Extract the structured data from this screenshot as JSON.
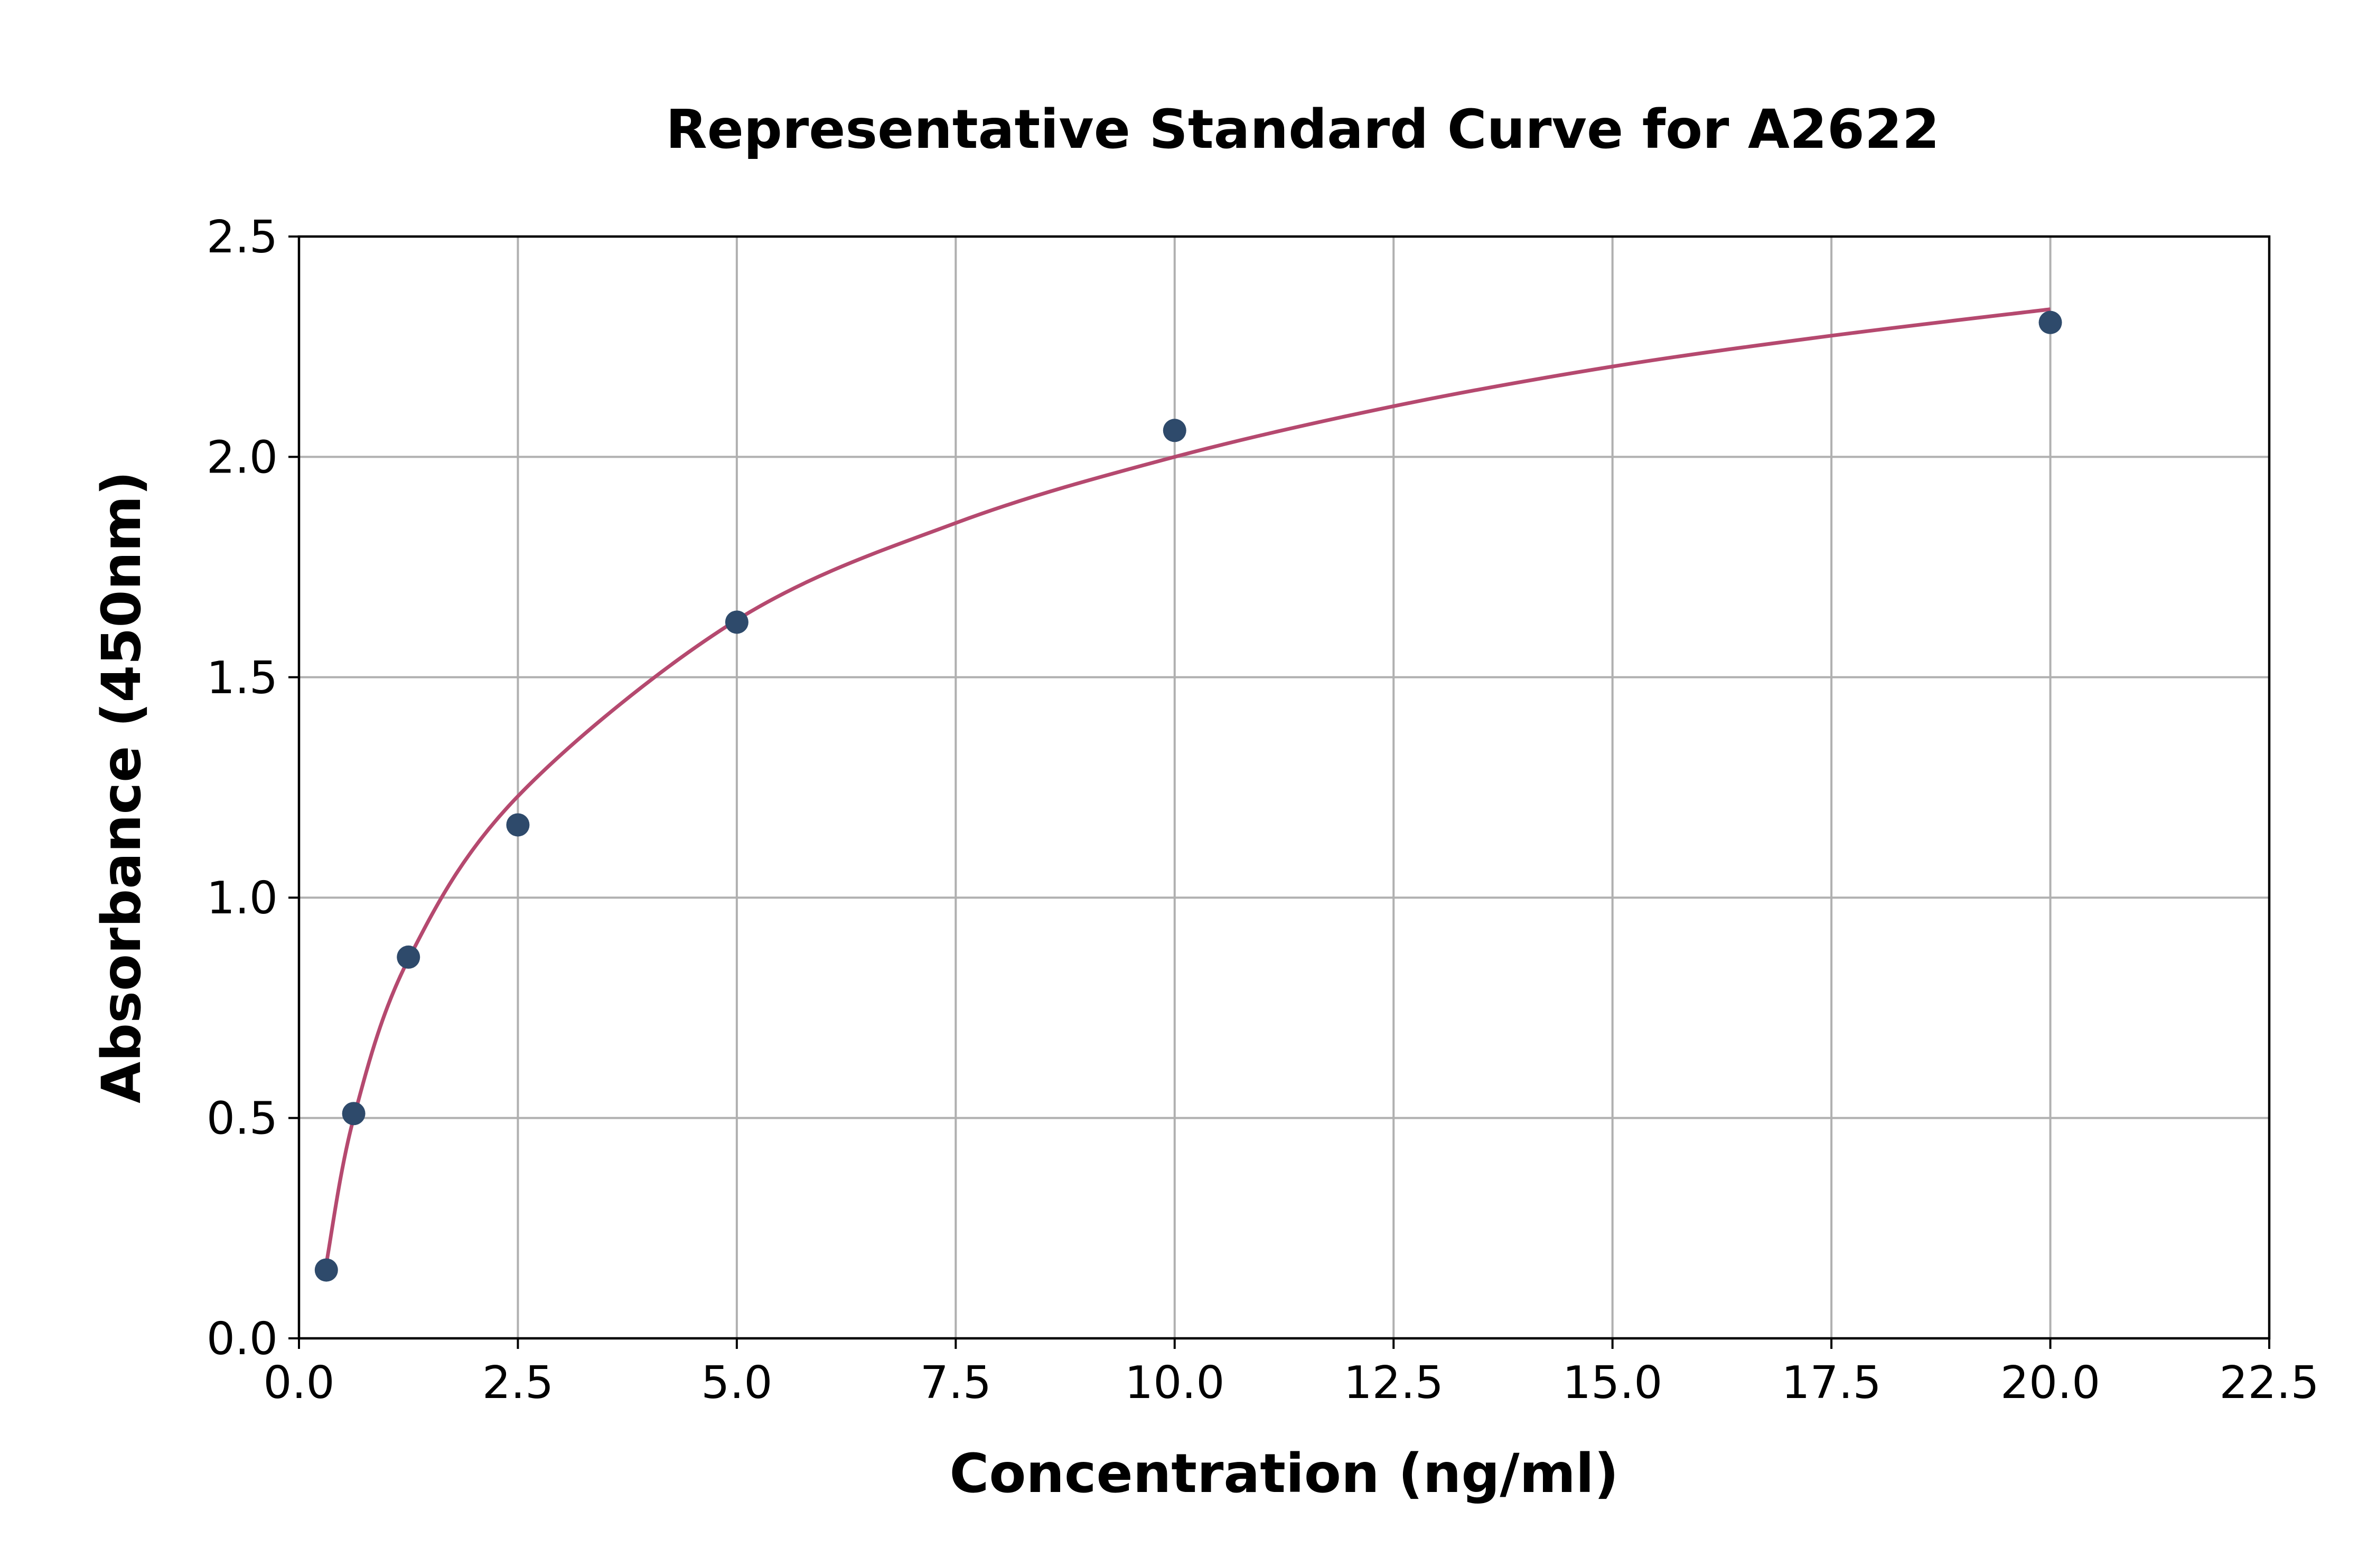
{
  "chart_data": {
    "type": "scatter",
    "title": "Representative Standard Curve for A2622",
    "xlabel": "Concentration (ng/ml)",
    "ylabel": "Absorbance (450nm)",
    "xlim": [
      0,
      22.5
    ],
    "ylim": [
      0,
      2.5
    ],
    "x_ticks": [
      "0.0",
      "2.5",
      "5.0",
      "7.5",
      "10.0",
      "12.5",
      "15.0",
      "17.5",
      "20.0",
      "22.5"
    ],
    "y_ticks": [
      "0.0",
      "0.5",
      "1.0",
      "1.5",
      "2.0",
      "2.5"
    ],
    "grid": true,
    "series": [
      {
        "kind": "points",
        "x": [
          0.3125,
          0.625,
          1.25,
          2.5,
          5,
          10,
          20
        ],
        "y": [
          0.155,
          0.51,
          0.865,
          1.165,
          1.625,
          2.06,
          2.305
        ]
      },
      {
        "kind": "fit-curve",
        "x": [
          0.3125,
          0.625,
          1.25,
          2.5,
          5,
          7.5,
          10,
          12.5,
          15,
          17.5,
          20
        ],
        "y": [
          0.17,
          0.5,
          0.86,
          1.23,
          1.63,
          1.85,
          2.0,
          2.115,
          2.205,
          2.275,
          2.335
        ]
      }
    ],
    "colors": {
      "points": "#2e4a6b",
      "curve": "#b5496f"
    }
  }
}
